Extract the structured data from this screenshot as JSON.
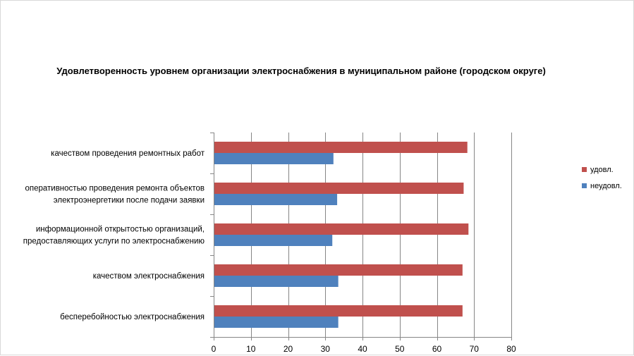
{
  "chart_data": {
    "type": "bar",
    "orientation": "horizontal",
    "title": "Удовлетворенность уровнем организации электроснабжения в муниципальном районе (городском округе)",
    "categories": [
      [
        "качеством проведения ремонтных работ"
      ],
      [
        "оперативностью проведения ремонта объектов",
        "электроэнергетики после подачи заявки"
      ],
      [
        "информационной открытостью организаций,",
        "предоставляющих услуги по электроснабжению"
      ],
      [
        "качеством электроснабжения"
      ],
      [
        "бесперебойностью электроснабжения"
      ]
    ],
    "series": [
      {
        "name": "удовл.",
        "color": "#c0504d",
        "values": [
          68,
          67,
          68.3,
          66.7,
          66.7
        ]
      },
      {
        "name": "неудовл.",
        "color": "#4f81bd",
        "values": [
          32,
          33,
          31.7,
          33.3,
          33.3
        ]
      }
    ],
    "xlim": [
      0,
      80
    ],
    "xticks": [
      0,
      10,
      20,
      30,
      40,
      50,
      60,
      70,
      80
    ],
    "grid": true,
    "legend": "right"
  }
}
